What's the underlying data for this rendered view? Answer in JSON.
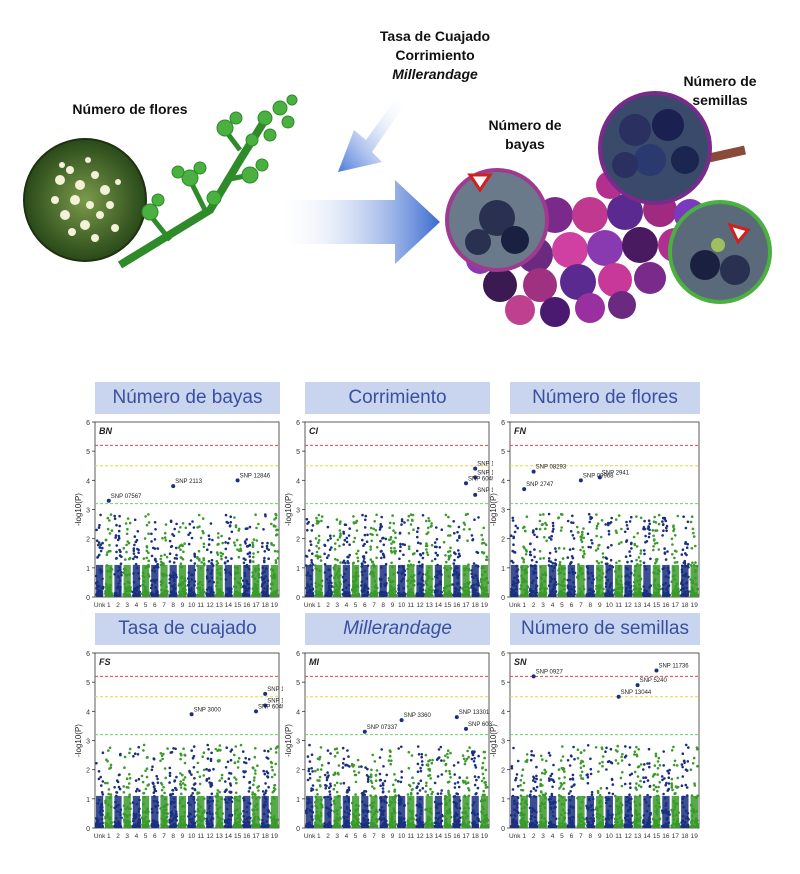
{
  "illustration": {
    "flowers_label": "Número de flores",
    "middle_lines": [
      "Tasa de Cuajado",
      "Corrimiento",
      "Millerandage"
    ],
    "berries_label": [
      "Número de",
      "bayas"
    ],
    "seeds_label": [
      "Número de",
      "semillas"
    ]
  },
  "chart_data": [
    {
      "type": "scatter",
      "title": "Número de bayas",
      "code": "BN",
      "ylabel": "-log10(P)",
      "ylim": [
        0,
        6
      ],
      "yticks": [
        0,
        1,
        2,
        3,
        4,
        5,
        6
      ],
      "xticks": [
        "Unk",
        "1",
        "2",
        "3",
        "4",
        "5",
        "6",
        "7",
        "8",
        "9",
        "10",
        "11",
        "12",
        "13",
        "14",
        "15",
        "16",
        "17",
        "18",
        "19"
      ],
      "thresholds": [
        5.2,
        4.5,
        3.2
      ],
      "annotations": [
        {
          "label": "SNP 07567",
          "x": "1",
          "y": 3.3
        },
        {
          "label": "SNP 2113",
          "x": "8",
          "y": 3.8
        },
        {
          "label": "SNP 12846",
          "x": "15",
          "y": 4.0
        }
      ]
    },
    {
      "type": "scatter",
      "title": "Corrimiento",
      "code": "CI",
      "ylabel": "-log10(P)",
      "ylim": [
        0,
        6
      ],
      "yticks": [
        0,
        1,
        2,
        3,
        4,
        5,
        6
      ],
      "xticks": [
        "Unk",
        "1",
        "2",
        "3",
        "4",
        "5",
        "6",
        "7",
        "8",
        "9",
        "10",
        "11",
        "12",
        "13",
        "14",
        "15",
        "16",
        "17",
        "18",
        "19"
      ],
      "thresholds": [
        5.2,
        4.5,
        3.2
      ],
      "annotations": [
        {
          "label": "SNP 13714",
          "x": "18",
          "y": 4.4
        },
        {
          "label": "SNP 13647",
          "x": "18",
          "y": 4.1
        },
        {
          "label": "SNP 6049",
          "x": "17",
          "y": 3.9
        },
        {
          "label": "SNP 14764",
          "x": "18",
          "y": 3.5
        }
      ]
    },
    {
      "type": "scatter",
      "title": "Número de flores",
      "code": "FN",
      "ylabel": "-log10(P)",
      "ylim": [
        0,
        6
      ],
      "yticks": [
        0,
        1,
        2,
        3,
        4,
        5,
        6
      ],
      "xticks": [
        "Unk",
        "1",
        "2",
        "3",
        "4",
        "5",
        "6",
        "7",
        "8",
        "9",
        "10",
        "11",
        "12",
        "13",
        "14",
        "15",
        "16",
        "17",
        "18",
        "19"
      ],
      "thresholds": [
        5.2,
        4.5,
        3.2
      ],
      "annotations": [
        {
          "label": "SNP 08293",
          "x": "2",
          "y": 4.3
        },
        {
          "label": "SNP 2747",
          "x": "1",
          "y": 3.7
        },
        {
          "label": "SNP 09968",
          "x": "7",
          "y": 4.0
        },
        {
          "label": "SNP 2941",
          "x": "9",
          "y": 4.1
        }
      ]
    },
    {
      "type": "scatter",
      "title": "Tasa de cuajado",
      "code": "FS",
      "ylabel": "-log10(P)",
      "ylim": [
        0,
        6
      ],
      "yticks": [
        0,
        1,
        2,
        3,
        4,
        5,
        6
      ],
      "xticks": [
        "Unk",
        "1",
        "2",
        "3",
        "4",
        "5",
        "6",
        "7",
        "8",
        "9",
        "10",
        "11",
        "12",
        "13",
        "14",
        "15",
        "16",
        "17",
        "18",
        "19"
      ],
      "thresholds": [
        5.2,
        4.5,
        3.2
      ],
      "annotations": [
        {
          "label": "SNP 13714",
          "x": "18",
          "y": 4.6
        },
        {
          "label": "SNP 14764",
          "x": "18",
          "y": 4.2
        },
        {
          "label": "SNP 3000",
          "x": "10",
          "y": 3.9
        },
        {
          "label": "SNP 6049",
          "x": "17",
          "y": 4.0
        }
      ]
    },
    {
      "type": "scatter",
      "title": "Millerandage",
      "code": "MI",
      "ylabel": "-log10(P)",
      "ylim": [
        0,
        6
      ],
      "yticks": [
        0,
        1,
        2,
        3,
        4,
        5,
        6
      ],
      "xticks": [
        "Unk",
        "1",
        "2",
        "3",
        "4",
        "5",
        "6",
        "7",
        "8",
        "9",
        "10",
        "11",
        "12",
        "13",
        "14",
        "15",
        "16",
        "17",
        "18",
        "19"
      ],
      "thresholds": [
        5.2,
        4.5,
        3.2
      ],
      "annotations": [
        {
          "label": "SNP 3360",
          "x": "10",
          "y": 3.7
        },
        {
          "label": "SNP 07337",
          "x": "6",
          "y": 3.3
        },
        {
          "label": "SNP 13301",
          "x": "16",
          "y": 3.8
        },
        {
          "label": "SNP 6037",
          "x": "17",
          "y": 3.4
        }
      ]
    },
    {
      "type": "scatter",
      "title": "Número de semillas",
      "code": "SN",
      "ylabel": "-log10(P)",
      "ylim": [
        0,
        6
      ],
      "yticks": [
        0,
        1,
        2,
        3,
        4,
        5,
        6
      ],
      "xticks": [
        "Unk",
        "1",
        "2",
        "3",
        "4",
        "5",
        "6",
        "7",
        "8",
        "9",
        "10",
        "11",
        "12",
        "13",
        "14",
        "15",
        "16",
        "17",
        "18",
        "19"
      ],
      "thresholds": [
        5.2,
        4.5,
        3.2
      ],
      "annotations": [
        {
          "label": "SNP 0927",
          "x": "2",
          "y": 5.2
        },
        {
          "label": "SNP 11736",
          "x": "15",
          "y": 5.4
        },
        {
          "label": "SNP 5240",
          "x": "13",
          "y": 4.9
        },
        {
          "label": "SNP 13044",
          "x": "11",
          "y": 4.5
        }
      ]
    }
  ],
  "colors": {
    "title_bg": "#c9d5ef",
    "title_text": "#3a4fa0",
    "green_points": "#3a9a2a",
    "blue_points": "#1a2f80",
    "red_threshold": "#e04848",
    "yellow_threshold": "#e8d840",
    "green_threshold": "#6cd06c"
  }
}
